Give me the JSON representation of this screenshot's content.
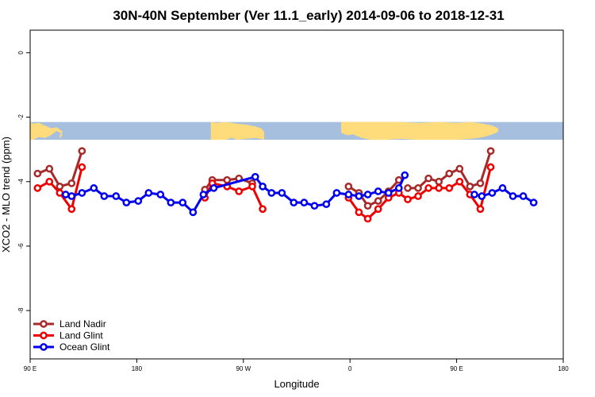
{
  "chart_data": {
    "type": "line",
    "title": "30N-40N September (Ver 11.1_early)   2014-09-06 to 2018-12-31",
    "xlabel": "Longitude",
    "ylabel": "XCO2 - MLO trend (ppm)",
    "xlim": [
      90,
      450
    ],
    "ylim": [
      -9.5,
      0.7
    ],
    "x_ticks": [
      {
        "value": 90,
        "label": "90 E"
      },
      {
        "value": 162,
        "label": "180"
      },
      {
        "value": 234,
        "label": "90 W"
      },
      {
        "value": 306,
        "label": "0"
      },
      {
        "value": 378,
        "label": "90 E"
      },
      {
        "value": 450,
        "label": "180"
      }
    ],
    "y_ticks": [
      {
        "value": 0,
        "label": "0"
      },
      {
        "value": -2,
        "label": "-2"
      },
      {
        "value": -4,
        "label": "-4"
      },
      {
        "value": -6,
        "label": "-6"
      },
      {
        "value": -8,
        "label": "-8"
      }
    ],
    "map_band": {
      "y_top": -2.15,
      "y_bottom": -2.7,
      "land_color": "#fedb7b",
      "ocean_color": "#a7bfdf"
    },
    "legend_position": "bottom-left",
    "series": [
      {
        "name": "Land Nadir",
        "color": "#a52a2a",
        "segments": [
          [
            [
              95,
              -3.75
            ],
            [
              103,
              -3.6
            ],
            [
              110,
              -4.15
            ],
            [
              118,
              -4.05
            ],
            [
              125,
              -3.05
            ]
          ],
          [
            [
              208,
              -4.25
            ],
            [
              213,
              -3.95
            ],
            [
              223,
              -3.95
            ],
            [
              231,
              -3.9
            ],
            [
              240,
              -4.05
            ]
          ],
          [
            [
              305,
              -4.15
            ],
            [
              312,
              -4.35
            ],
            [
              318,
              -4.75
            ],
            [
              325,
              -4.6
            ],
            [
              332,
              -4.3
            ],
            [
              339,
              -3.95
            ]
          ],
          [
            [
              345,
              -4.2
            ],
            [
              352,
              -4.2
            ],
            [
              359,
              -3.9
            ],
            [
              366,
              -4.0
            ],
            [
              373,
              -3.75
            ],
            [
              380,
              -3.6
            ],
            [
              387,
              -4.15
            ],
            [
              394,
              -4.05
            ],
            [
              401,
              -3.05
            ]
          ]
        ]
      },
      {
        "name": "Land Glint",
        "color": "#ee0000",
        "segments": [
          [
            [
              95,
              -4.2
            ],
            [
              103,
              -4.0
            ],
            [
              110,
              -4.35
            ],
            [
              118,
              -4.85
            ],
            [
              125,
              -3.55
            ]
          ],
          [
            [
              208,
              -4.5
            ],
            [
              213,
              -4.05
            ],
            [
              223,
              -4.15
            ],
            [
              231,
              -4.3
            ],
            [
              240,
              -4.15
            ],
            [
              247,
              -4.85
            ]
          ],
          [
            [
              305,
              -4.5
            ],
            [
              312,
              -4.95
            ],
            [
              318,
              -5.15
            ],
            [
              325,
              -4.85
            ],
            [
              332,
              -4.5
            ],
            [
              339,
              -4.35
            ],
            [
              345,
              -4.55
            ],
            [
              352,
              -4.45
            ],
            [
              359,
              -4.2
            ],
            [
              366,
              -4.2
            ],
            [
              373,
              -4.2
            ],
            [
              380,
              -4.0
            ],
            [
              387,
              -4.4
            ],
            [
              394,
              -4.85
            ],
            [
              401,
              -3.55
            ]
          ]
        ]
      },
      {
        "name": "Ocean Glint",
        "color": "#0000ee",
        "segments": [
          [
            [
              114,
              -4.4
            ],
            [
              118,
              -4.45
            ],
            [
              125,
              -4.35
            ],
            [
              133,
              -4.2
            ],
            [
              140,
              -4.45
            ],
            [
              148,
              -4.45
            ],
            [
              155,
              -4.65
            ],
            [
              163,
              -4.6
            ],
            [
              170,
              -4.35
            ],
            [
              178,
              -4.4
            ],
            [
              185,
              -4.65
            ],
            [
              193,
              -4.65
            ],
            [
              200,
              -4.95
            ],
            [
              207,
              -4.4
            ],
            [
              214,
              -4.2
            ],
            [
              242,
              -3.85
            ],
            [
              247,
              -4.15
            ],
            [
              253,
              -4.35
            ],
            [
              260,
              -4.35
            ],
            [
              268,
              -4.65
            ],
            [
              275,
              -4.65
            ],
            [
              282,
              -4.75
            ],
            [
              290,
              -4.7
            ],
            [
              297,
              -4.35
            ],
            [
              305,
              -4.4
            ],
            [
              312,
              -4.45
            ],
            [
              318,
              -4.4
            ],
            [
              325,
              -4.3
            ],
            [
              332,
              -4.35
            ],
            [
              339,
              -4.2
            ],
            [
              343,
              -3.8
            ]
          ],
          [
            [
              390,
              -4.4
            ],
            [
              395,
              -4.45
            ],
            [
              402,
              -4.35
            ],
            [
              409,
              -4.2
            ],
            [
              416,
              -4.45
            ],
            [
              423,
              -4.45
            ],
            [
              430,
              -4.65
            ]
          ]
        ]
      }
    ]
  }
}
